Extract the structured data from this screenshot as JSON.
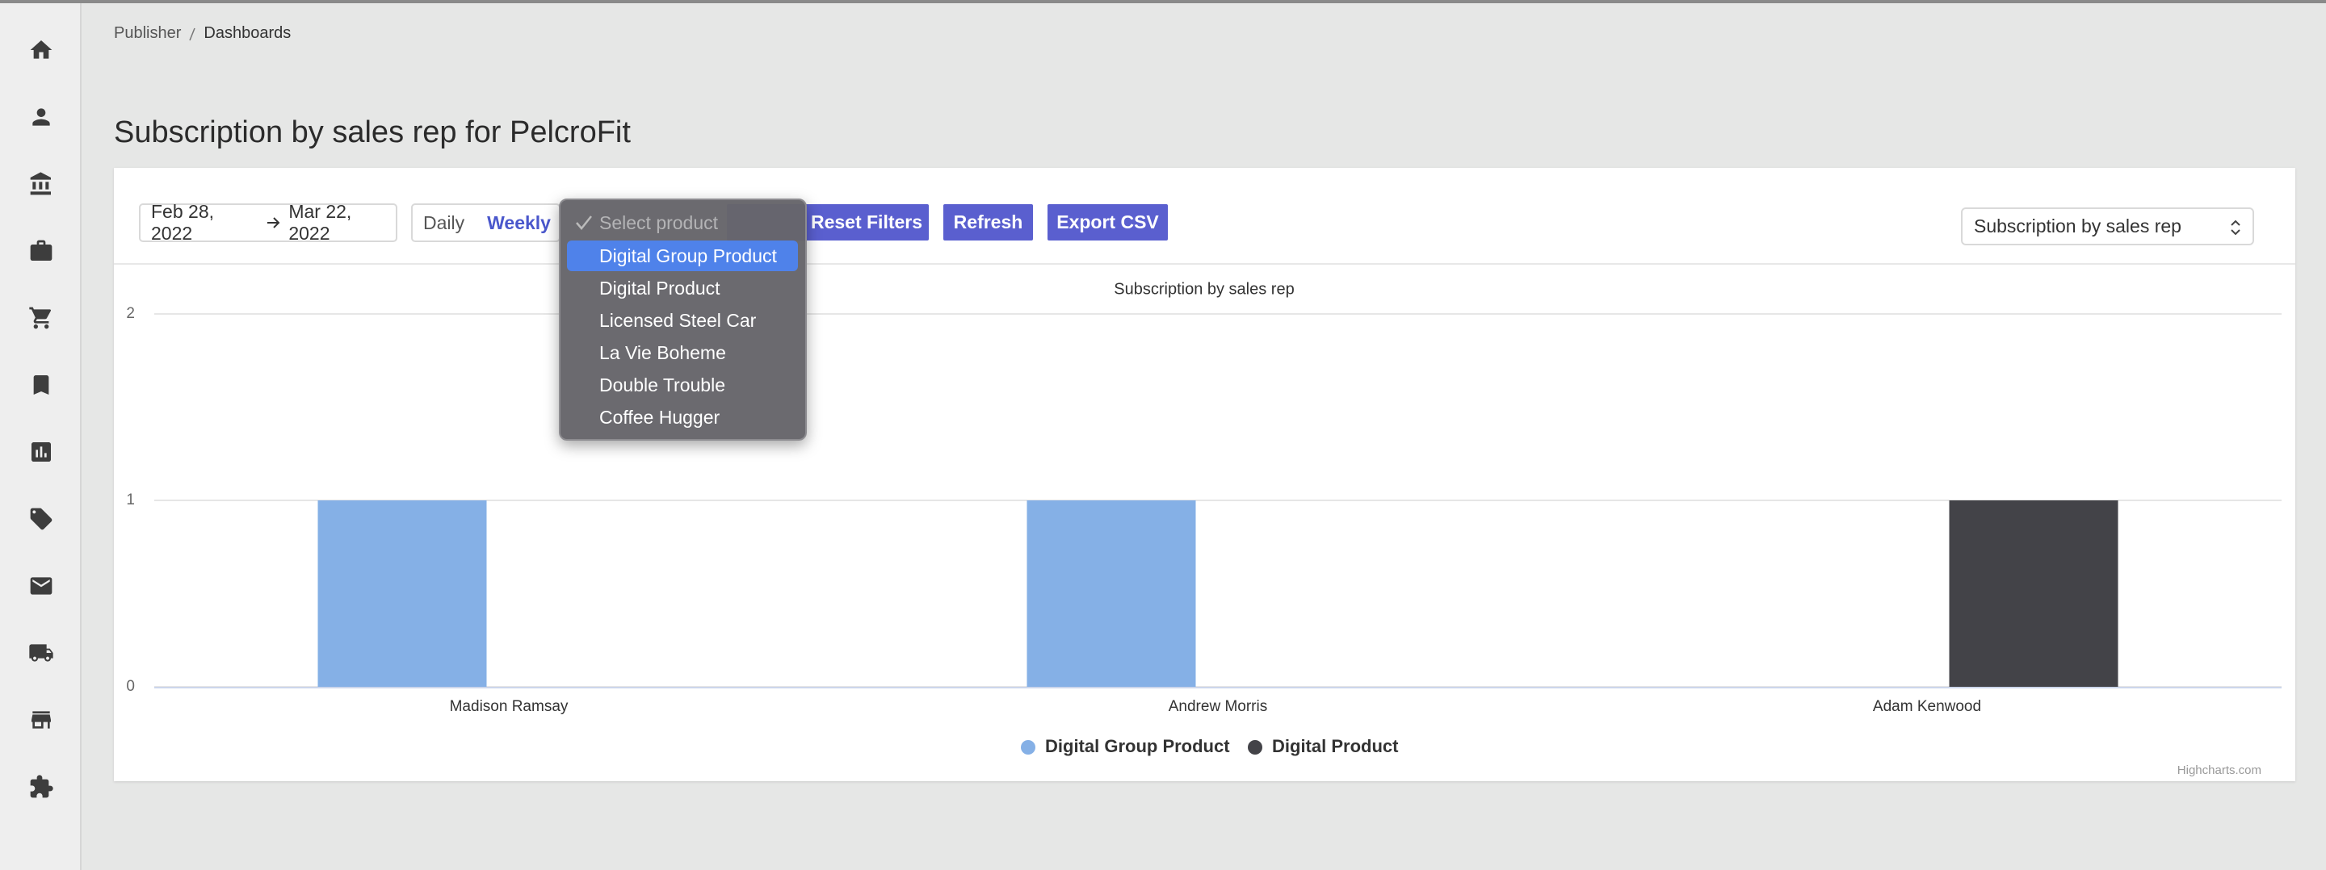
{
  "breadcrumb": [
    "Publisher",
    "Dashboards"
  ],
  "title": "Subscription by sales rep for PelcroFit",
  "filters": {
    "date_start": "Feb 28, 2022",
    "date_end": "Mar 22, 2022",
    "granularity": [
      "Daily",
      "Weekly"
    ],
    "product_select": {
      "placeholder": "Select product",
      "options": [
        "Digital Group Product",
        "Digital Product",
        "Licensed Steel Car",
        "La Vie Boheme",
        "Double Trouble",
        "Coffee Hugger"
      ]
    }
  },
  "buttons": [
    "Reset Filters",
    "Refresh",
    "Export CSV"
  ],
  "report_select": "Subscription by sales rep",
  "chart_data": {
    "type": "bar",
    "title": "Subscription by sales rep",
    "categories": [
      "Madison Ramsay",
      "Andrew Morris",
      "Adam Kenwood"
    ],
    "series": [
      {
        "name": "Digital Group Product",
        "color": "#85b0e6",
        "values": [
          1,
          1,
          0
        ]
      },
      {
        "name": "Digital Product",
        "color": "#434348",
        "values": [
          0,
          0,
          1
        ]
      }
    ],
    "ylim": [
      0,
      2
    ],
    "yticks": [
      0,
      1,
      2
    ],
    "grid": true,
    "legend": "bottom",
    "credits": "Highcharts.com"
  }
}
